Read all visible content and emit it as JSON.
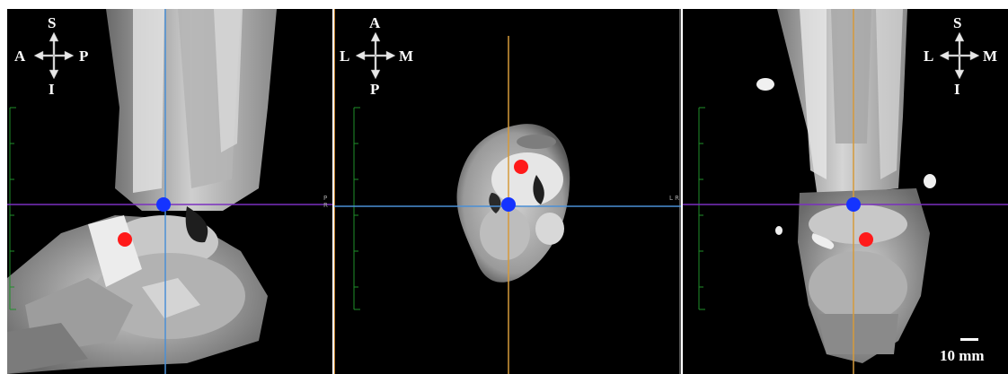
{
  "views": [
    {
      "name": "sagittal",
      "orientation": {
        "top": "S",
        "bottom": "I",
        "left": "A",
        "right": "P"
      },
      "crosshair_colors": {
        "horizontal": "#7b2fbf",
        "vertical": "#4a8fd6"
      },
      "markers": [
        {
          "color": "#1433ff",
          "label": "blue"
        },
        {
          "color": "#ff1a1a",
          "label": "red"
        }
      ],
      "edge_tag": "P R"
    },
    {
      "name": "axial",
      "orientation": {
        "top": "A",
        "bottom": "P",
        "left": "L",
        "right": "M"
      },
      "crosshair_colors": {
        "horizontal": "#4a8fd6",
        "vertical": "#d69a3a"
      },
      "markers": [
        {
          "color": "#1433ff",
          "label": "blue"
        },
        {
          "color": "#ff1a1a",
          "label": "red"
        }
      ],
      "edge_tag": "L R"
    },
    {
      "name": "coronal",
      "orientation": {
        "top": "S",
        "bottom": "I",
        "left": "L",
        "right": "M"
      },
      "crosshair_colors": {
        "horizontal": "#7b2fbf",
        "vertical": "#d69a3a"
      },
      "markers": [
        {
          "color": "#1433ff",
          "label": "blue"
        },
        {
          "color": "#ff1a1a",
          "label": "red"
        }
      ]
    }
  ],
  "scale_bar": {
    "label": "10 mm"
  },
  "colors": {
    "background": "#000000",
    "ruler": "#1f8f2a",
    "frame_line": "#c07a20"
  }
}
